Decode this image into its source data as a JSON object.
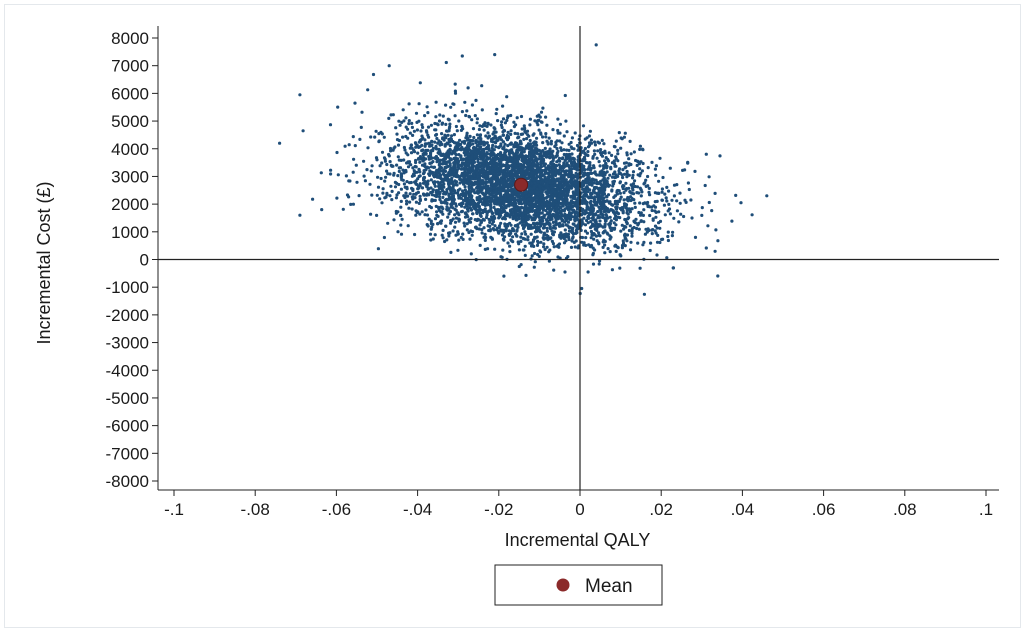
{
  "chart_data": {
    "type": "scatter",
    "title": "",
    "xlabel": "Incremental QALY",
    "ylabel": "Incremental Cost (£)",
    "xlim": [
      -0.1,
      0.1
    ],
    "ylim": [
      -8000,
      8000
    ],
    "x_ticks": [
      -0.1,
      -0.08,
      -0.06,
      -0.04,
      -0.02,
      0,
      0.02,
      0.04,
      0.06,
      0.08,
      0.1
    ],
    "x_tick_labels": [
      "-.1",
      "-.08",
      "-.06",
      "-.04",
      "-.02",
      "0",
      ".02",
      ".04",
      ".06",
      ".08",
      ".1"
    ],
    "y_ticks": [
      8000,
      7000,
      6000,
      5000,
      4000,
      3000,
      2000,
      1000,
      0,
      -1000,
      -2000,
      -3000,
      -4000,
      -5000,
      -6000,
      -7000,
      -8000
    ],
    "y_tick_labels": [
      "8000",
      "7000",
      "6000",
      "5000",
      "4000",
      "3000",
      "2000",
      "1000",
      "0",
      "-1000",
      "-2000",
      "-3000",
      "-4000",
      "-5000",
      "-6000",
      "-7000",
      "-8000"
    ],
    "grid": false,
    "reference_lines": {
      "x": 0,
      "y": 0
    },
    "legend": {
      "placement": "bottom-center",
      "entries": [
        "Mean"
      ]
    },
    "colors": {
      "points": "#1f4e79",
      "mean": "#8b2a2a",
      "axes": "#222222"
    },
    "mean": {
      "x": -0.0145,
      "y": 2700
    },
    "cloud": {
      "n": 5000,
      "x_mean": -0.0145,
      "x_sd": 0.0155,
      "y_mean": 2700,
      "y_sd": 1050,
      "correlation": -0.3
    },
    "notable_points": [
      {
        "x": -0.074,
        "y": 4200
      },
      {
        "x": -0.069,
        "y": 5950
      },
      {
        "x": -0.021,
        "y": 7400
      },
      {
        "x": -0.029,
        "y": 7350
      },
      {
        "x": 0.004,
        "y": 7750
      },
      {
        "x": 0.046,
        "y": 2300
      },
      {
        "x": 0.023,
        "y": -300
      },
      {
        "x": -0.047,
        "y": 7000
      },
      {
        "x": -0.069,
        "y": 1600
      },
      {
        "x": 0.002,
        "y": -450
      }
    ]
  },
  "legend": {
    "mean_label": "Mean"
  }
}
